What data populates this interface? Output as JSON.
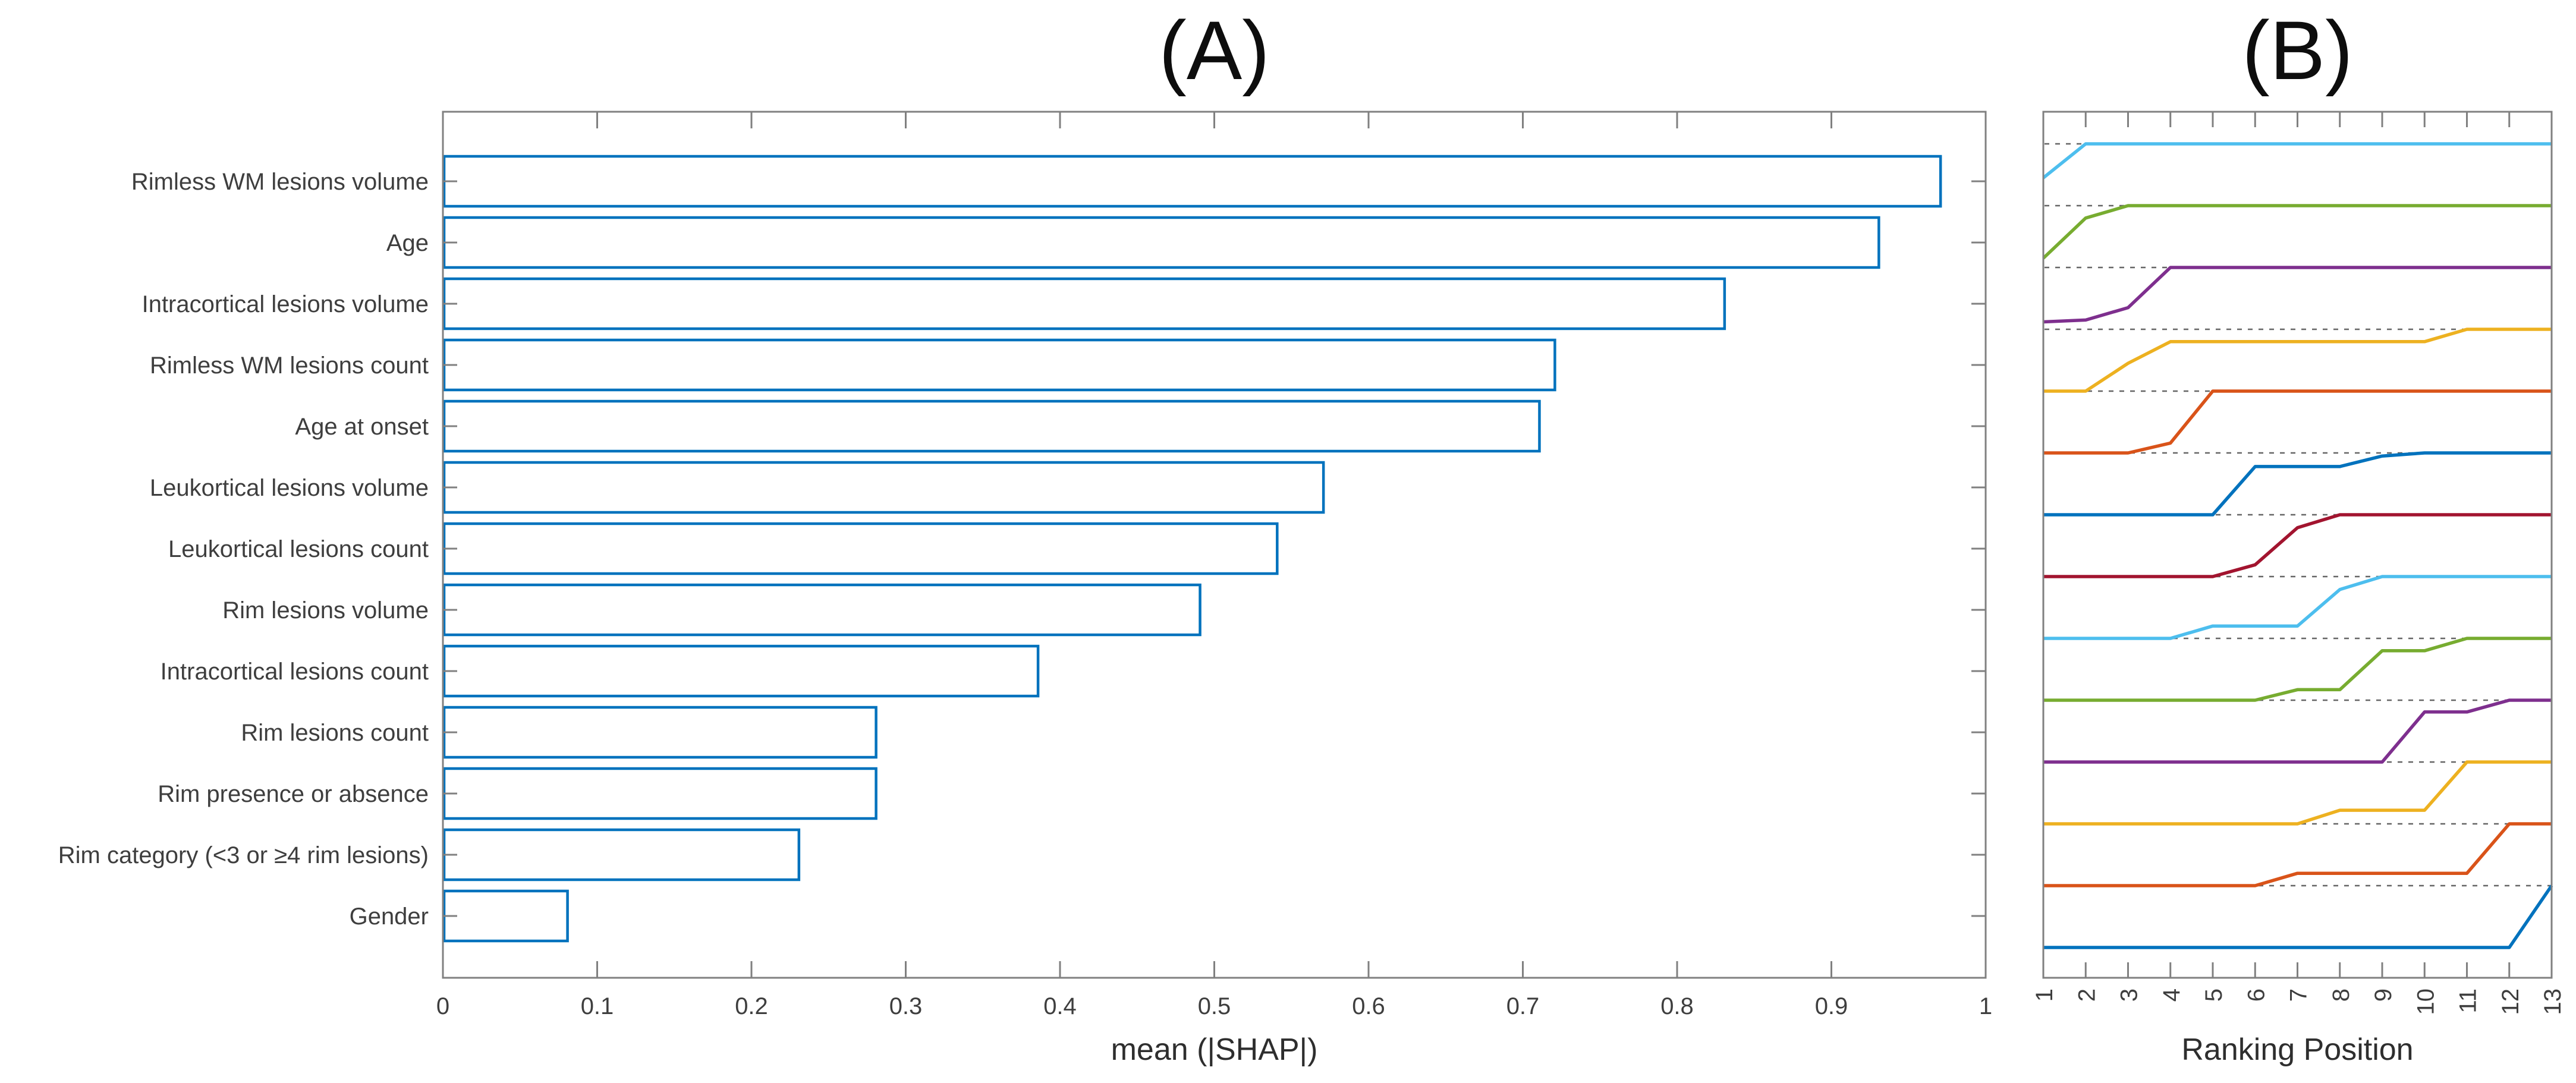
{
  "figure": {
    "background": "#ffffff",
    "panels": [
      {
        "id": "A",
        "title": "(A)",
        "xlabel": "mean (|SHAP|)"
      },
      {
        "id": "B",
        "title": "(B)",
        "xlabel": "Ranking Position"
      }
    ]
  },
  "chart_data": [
    {
      "type": "bar",
      "panel": "A",
      "title": "(A)",
      "orientation": "horizontal",
      "xlabel": "mean (|SHAP|)",
      "xlim": [
        0,
        1
      ],
      "xticks": [
        "0",
        "0.1",
        "0.2",
        "0.3",
        "0.4",
        "0.5",
        "0.6",
        "0.7",
        "0.8",
        "0.9",
        "1"
      ],
      "categories": [
        "Rimless WM lesions volume",
        "Age",
        "Intracortical lesions volume",
        "Rimless WM lesions count",
        "Age at onset",
        "Leukortical lesions volume",
        "Leukortical lesions count",
        "Rim lesions volume",
        "Intracortical lesions count",
        "Rim lesions count",
        "Rim presence or absence",
        "Rim category (<3 or ≥4 rim lesions)",
        "Gender"
      ],
      "values": [
        0.97,
        0.93,
        0.83,
        0.72,
        0.71,
        0.57,
        0.54,
        0.49,
        0.385,
        0.28,
        0.28,
        0.23,
        0.08
      ],
      "bar_face_color": "#ffffff",
      "bar_edge_color": "#0072BD",
      "grid": false,
      "tick_label_color": "#3e3e3e",
      "spine_color": "#808080"
    },
    {
      "type": "line",
      "panel": "B",
      "title": "(B)",
      "xlabel": "Ranking Position",
      "xlim": [
        1,
        13
      ],
      "xticks": [
        "1",
        "2",
        "3",
        "4",
        "5",
        "6",
        "7",
        "8",
        "9",
        "10",
        "11",
        "12",
        "13"
      ],
      "xtick_rotation_deg": 90,
      "gridline_style": "dashed",
      "gridline_color": "#666666",
      "gridline_count": 13,
      "series": [
        {
          "name": "Rimless WM lesions volume",
          "band": 1,
          "color": "#4DBEEE",
          "points": [
            [
              1,
              0.45
            ],
            [
              2,
              1
            ],
            [
              13,
              1
            ]
          ]
        },
        {
          "name": "Age",
          "band": 2,
          "color": "#77AC30",
          "points": [
            [
              1,
              0.15
            ],
            [
              2,
              0.8
            ],
            [
              3,
              1
            ],
            [
              13,
              1
            ]
          ]
        },
        {
          "name": "Intracortical lesions volume",
          "band": 3,
          "color": "#7E2F8E",
          "points": [
            [
              1,
              0.12
            ],
            [
              2,
              0.15
            ],
            [
              3,
              0.35
            ],
            [
              4,
              1
            ],
            [
              13,
              1
            ]
          ]
        },
        {
          "name": "Rimless WM lesions count",
          "band": 4,
          "color": "#EDB120",
          "points": [
            [
              1,
              0
            ],
            [
              2,
              0
            ],
            [
              3,
              0.45
            ],
            [
              4,
              0.8
            ],
            [
              10,
              0.8
            ],
            [
              11,
              1
            ],
            [
              13,
              1
            ]
          ]
        },
        {
          "name": "Age at onset",
          "band": 5,
          "color": "#D95319",
          "points": [
            [
              1,
              0
            ],
            [
              3,
              0
            ],
            [
              4,
              0.16
            ],
            [
              5,
              1
            ],
            [
              13,
              1
            ]
          ]
        },
        {
          "name": "Leukortical lesions volume",
          "band": 6,
          "color": "#0072BD",
          "points": [
            [
              1,
              0
            ],
            [
              5,
              0
            ],
            [
              6,
              0.78
            ],
            [
              8,
              0.78
            ],
            [
              9,
              0.95
            ],
            [
              10,
              1
            ],
            [
              13,
              1
            ]
          ]
        },
        {
          "name": "Leukortical lesions count",
          "band": 7,
          "color": "#A2142F",
          "points": [
            [
              1,
              0
            ],
            [
              5,
              0
            ],
            [
              6,
              0.19
            ],
            [
              7,
              0.79
            ],
            [
              8,
              1
            ],
            [
              13,
              1
            ]
          ]
        },
        {
          "name": "Rim lesions volume",
          "band": 8,
          "color": "#4DBEEE",
          "points": [
            [
              1,
              0
            ],
            [
              4,
              0
            ],
            [
              5,
              0.2
            ],
            [
              7,
              0.2
            ],
            [
              8,
              0.79
            ],
            [
              9,
              1
            ],
            [
              13,
              1
            ]
          ]
        },
        {
          "name": "Intracortical lesions count",
          "band": 9,
          "color": "#77AC30",
          "points": [
            [
              1,
              0
            ],
            [
              6,
              0
            ],
            [
              7,
              0.17
            ],
            [
              8,
              0.17
            ],
            [
              9,
              0.8
            ],
            [
              10,
              0.8
            ],
            [
              11,
              1
            ],
            [
              13,
              1
            ]
          ]
        },
        {
          "name": "Rim lesions count",
          "band": 10,
          "color": "#7E2F8E",
          "points": [
            [
              1,
              0
            ],
            [
              9,
              0
            ],
            [
              10,
              0.81
            ],
            [
              11,
              0.81
            ],
            [
              12,
              1
            ],
            [
              13,
              1
            ]
          ]
        },
        {
          "name": "Rim presence or absence",
          "band": 11,
          "color": "#EDB120",
          "points": [
            [
              1,
              0
            ],
            [
              7,
              0
            ],
            [
              8,
              0.22
            ],
            [
              10,
              0.22
            ],
            [
              11,
              1
            ],
            [
              13,
              1
            ]
          ]
        },
        {
          "name": "Rim category (<3 or ≥4 rim lesions)",
          "band": 12,
          "color": "#D95319",
          "points": [
            [
              1,
              0
            ],
            [
              6,
              0
            ],
            [
              7,
              0.2
            ],
            [
              11,
              0.2
            ],
            [
              12,
              1
            ],
            [
              13,
              1
            ]
          ]
        },
        {
          "name": "Gender",
          "band": 13,
          "color": "#0072BD",
          "points": [
            [
              1,
              0
            ],
            [
              12,
              0
            ],
            [
              13,
              1
            ]
          ]
        }
      ]
    }
  ]
}
